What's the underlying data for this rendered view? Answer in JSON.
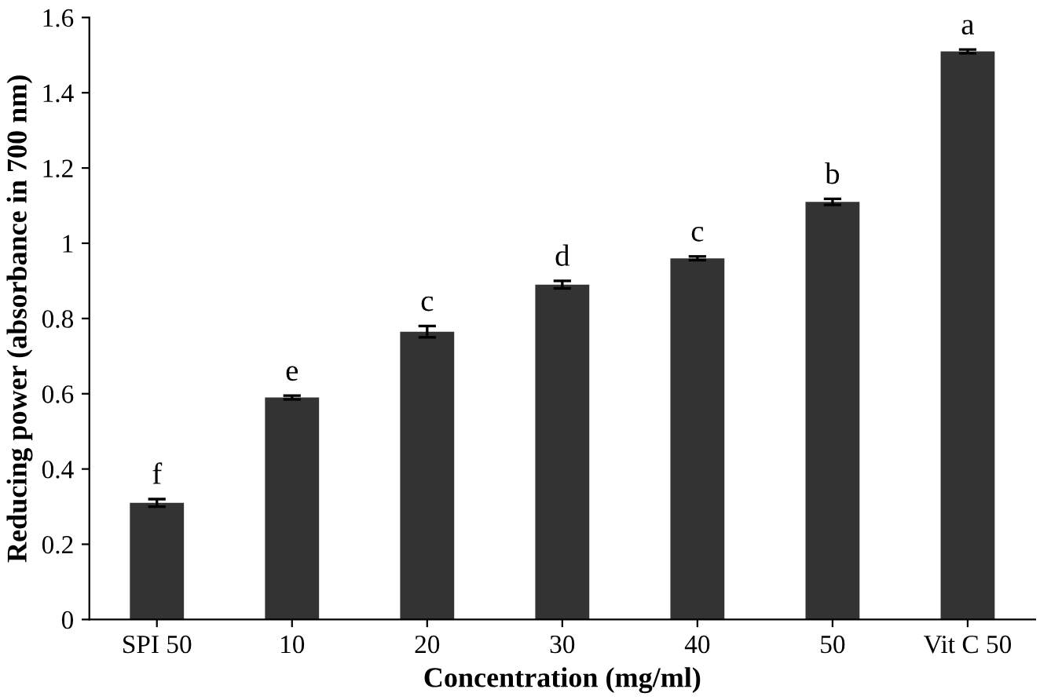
{
  "chart_data": {
    "type": "bar",
    "xlabel": "Concentration (mg/ml)",
    "ylabel": "Reducing power (absorbance in 700 nm)",
    "categories": [
      "SPI 50",
      "10",
      "20",
      "30",
      "40",
      "50",
      "Vit C 50"
    ],
    "values": [
      0.31,
      0.59,
      0.765,
      0.89,
      0.96,
      1.11,
      1.51
    ],
    "errors": [
      0.01,
      0.005,
      0.015,
      0.01,
      0.005,
      0.008,
      0.005
    ],
    "color": "#333333",
    "ylim": [
      0,
      1.6
    ],
    "yticks": [
      0,
      0.2,
      0.4,
      0.6,
      0.8,
      1,
      1.2,
      1.4,
      1.6
    ],
    "grid": false,
    "annotations": [
      {
        "text": "f",
        "x": "SPI 50",
        "y": 0.32
      },
      {
        "text": "e",
        "x": "10",
        "y": 0.595
      },
      {
        "text": "c",
        "x": "20",
        "y": 0.78
      },
      {
        "text": "d",
        "x": "30",
        "y": 0.9
      },
      {
        "text": "c",
        "x": "40",
        "y": 0.965
      },
      {
        "text": "b",
        "x": "50",
        "y": 1.118
      },
      {
        "text": "a",
        "x": "Vit C 50",
        "y": 1.515
      }
    ]
  }
}
